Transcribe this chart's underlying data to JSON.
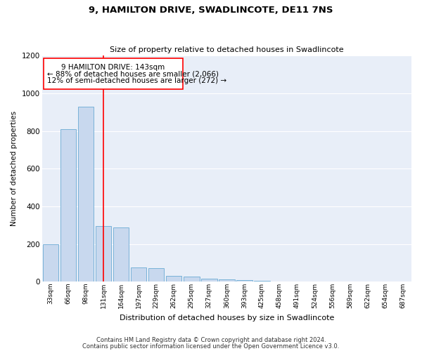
{
  "title": "9, HAMILTON DRIVE, SWADLINCOTE, DE11 7NS",
  "subtitle": "Size of property relative to detached houses in Swadlincote",
  "xlabel": "Distribution of detached houses by size in Swadlincote",
  "ylabel": "Number of detached properties",
  "bar_color": "#c8d8ee",
  "bar_edge_color": "#6aaad4",
  "background_color": "#e8eef8",
  "categories": [
    "33sqm",
    "66sqm",
    "98sqm",
    "131sqm",
    "164sqm",
    "197sqm",
    "229sqm",
    "262sqm",
    "295sqm",
    "327sqm",
    "360sqm",
    "393sqm",
    "425sqm",
    "458sqm",
    "491sqm",
    "524sqm",
    "556sqm",
    "589sqm",
    "622sqm",
    "654sqm",
    "687sqm"
  ],
  "values": [
    197,
    810,
    930,
    297,
    290,
    75,
    73,
    30,
    28,
    15,
    13,
    10,
    4,
    2,
    1,
    1,
    0,
    0,
    0,
    0,
    0
  ],
  "ylim": [
    0,
    1200
  ],
  "yticks": [
    0,
    200,
    400,
    600,
    800,
    1000,
    1200
  ],
  "red_line_x": 3.0,
  "annotation_title": "9 HAMILTON DRIVE: 143sqm",
  "annotation_line1": "← 88% of detached houses are smaller (2,066)",
  "annotation_line2": "12% of semi-detached houses are larger (272) →",
  "footer1": "Contains HM Land Registry data © Crown copyright and database right 2024.",
  "footer2": "Contains public sector information licensed under the Open Government Licence v3.0."
}
